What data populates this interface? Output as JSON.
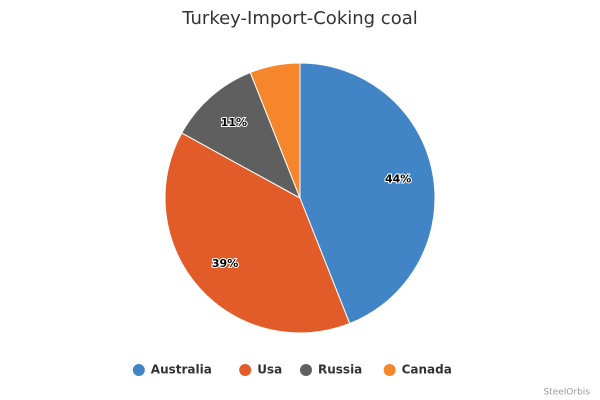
{
  "chart_data": {
    "type": "pie",
    "title": "Turkey-Import-Coking coal",
    "categories": [
      "Australia",
      "Usa",
      "Russia",
      "Canada"
    ],
    "values": [
      44,
      39,
      11,
      6
    ],
    "value_labels": [
      "44%",
      "39%",
      "11%",
      null
    ],
    "colors": [
      "#4185c6",
      "#e25c2a",
      "#5f5f5f",
      "#f5862c"
    ],
    "legend": "bottom",
    "credit": "SteelOrbis"
  }
}
